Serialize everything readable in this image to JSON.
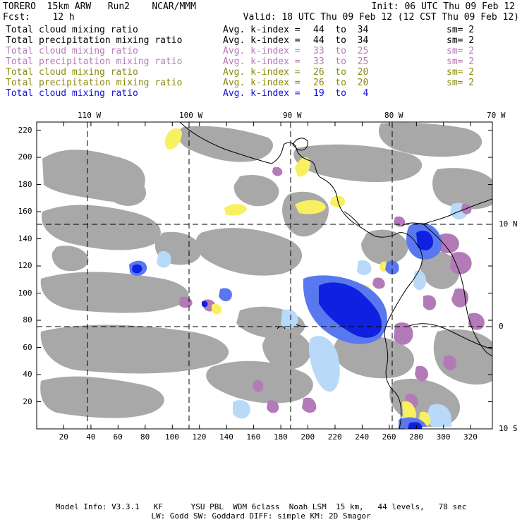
{
  "header": {
    "left1": "TORERO  15km ARW   Run2    NCAR/MMM",
    "right1": "Init: 06 UTC Thu 09 Feb 12",
    "left2": "Fcst:    12 h",
    "right2": "Valid: 18 UTC Thu 09 Feb 12 (12 CST Thu 09 Feb 12)"
  },
  "fields": [
    {
      "name": "Total cloud mixing ratio",
      "avg": "Avg. k-index =",
      "range": "44  to  34",
      "sm": "sm= 2",
      "color": "#000000"
    },
    {
      "name": "Total precipitation mixing ratio",
      "avg": "Avg. k-index =",
      "range": "44  to  34",
      "sm": "sm= 2",
      "color": "#000000"
    },
    {
      "name": "Total cloud mixing ratio",
      "avg": "Avg. k-index =",
      "range": "33  to  25",
      "sm": "sm= 2",
      "color": "#b87ab8"
    },
    {
      "name": "Total precipitation mixing ratio",
      "avg": "Avg. k-index =",
      "range": "33  to  25",
      "sm": "sm= 2",
      "color": "#b87ab8"
    },
    {
      "name": "Total cloud mixing ratio",
      "avg": "Avg. k-index =",
      "range": "26  to  20",
      "sm": "sm= 2",
      "color": "#8a8a10"
    },
    {
      "name": "Total precipitation mixing ratio",
      "avg": "Avg. k-index =",
      "range": "26  to  20",
      "sm": "sm= 2",
      "color": "#8a8a10"
    },
    {
      "name": "Total cloud mixing ratio",
      "avg": "Avg. k-index =",
      "range": "19  to   4",
      "sm": "",
      "color": "#1010e0"
    }
  ],
  "map": {
    "lon_labels": [
      "110 W",
      "100 W",
      "90 W",
      "80 W",
      "70 W"
    ],
    "lat_labels": [
      "10 N",
      "0",
      "10 S"
    ],
    "grid_x_labels": [
      "20",
      "40",
      "60",
      "80",
      "100",
      "120",
      "140",
      "160",
      "180",
      "200",
      "220",
      "240",
      "260",
      "280",
      "300",
      "320"
    ],
    "grid_y_labels": [
      "20",
      "40",
      "60",
      "80",
      "100",
      "120",
      "140",
      "160",
      "180",
      "200",
      "220"
    ],
    "colors": {
      "cloud_gray": "#a8a8a8",
      "precip_purple": "#b37ab8",
      "yellow": "#f8f060",
      "blue_dark": "#1020e0",
      "blue_mid": "#5878f0",
      "blue_light": "#b8daf8",
      "coastline": "#000000"
    }
  },
  "footer": {
    "line1": "Model Info: V3.3.1   KF      YSU PBL  WDM 6class  Noah LSM  15 km,   44 levels,   78 sec",
    "line2": "LW: Godd SW: Goddard DIFF: simple KM: 2D Smagor"
  }
}
